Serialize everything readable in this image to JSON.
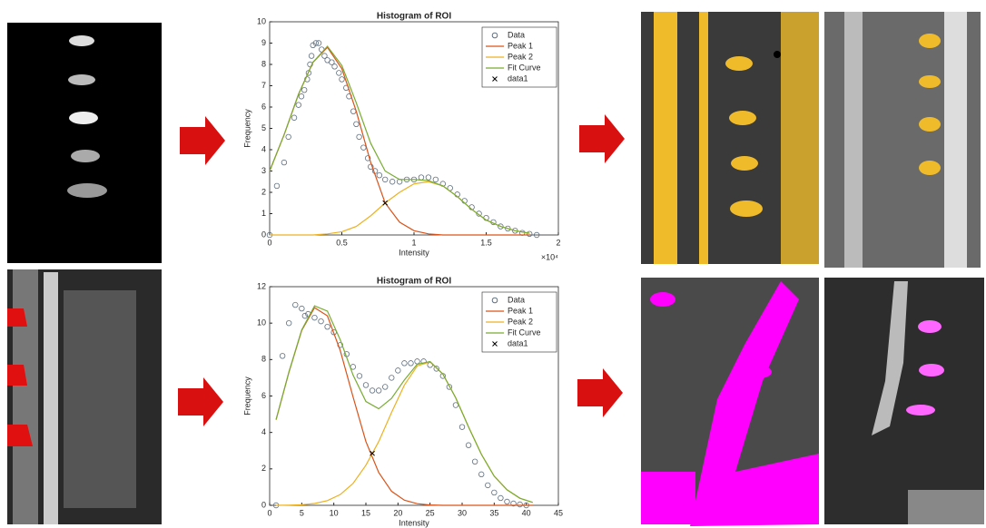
{
  "chart_data": [
    {
      "type": "line",
      "title": "Histogram of ROI",
      "xlabel": "Intensity",
      "ylabel": "Frequency",
      "x_exponent_label": "×10⁴",
      "xlim": [
        0,
        2
      ],
      "xticks": [
        0,
        0.5,
        1,
        1.5,
        2
      ],
      "ylim": [
        0,
        10
      ],
      "yticks": [
        0,
        1,
        2,
        3,
        4,
        5,
        6,
        7,
        8,
        9,
        10
      ],
      "legend": "upper right",
      "series": [
        {
          "name": "Data",
          "mode": "markers",
          "marker": "o",
          "color": "#5f6f7f",
          "x": [
            0,
            0.05,
            0.1,
            0.13,
            0.17,
            0.2,
            0.22,
            0.24,
            0.26,
            0.27,
            0.28,
            0.29,
            0.3,
            0.32,
            0.34,
            0.36,
            0.38,
            0.4,
            0.43,
            0.45,
            0.48,
            0.5,
            0.53,
            0.55,
            0.58,
            0.6,
            0.62,
            0.65,
            0.68,
            0.7,
            0.73,
            0.76,
            0.8,
            0.85,
            0.9,
            0.95,
            1.0,
            1.05,
            1.1,
            1.15,
            1.2,
            1.25,
            1.3,
            1.35,
            1.4,
            1.45,
            1.5,
            1.55,
            1.6,
            1.65,
            1.7,
            1.75,
            1.8,
            1.85
          ],
          "values": [
            0,
            2.3,
            3.4,
            4.6,
            5.5,
            6.1,
            6.5,
            6.8,
            7.3,
            7.6,
            8.0,
            8.4,
            8.9,
            9.0,
            9.0,
            8.7,
            8.4,
            8.2,
            8.1,
            7.9,
            7.6,
            7.3,
            6.9,
            6.5,
            5.8,
            5.2,
            4.6,
            4.1,
            3.6,
            3.2,
            3.0,
            2.8,
            2.6,
            2.5,
            2.5,
            2.6,
            2.6,
            2.7,
            2.7,
            2.6,
            2.4,
            2.2,
            1.9,
            1.6,
            1.3,
            1.0,
            0.8,
            0.6,
            0.4,
            0.3,
            0.2,
            0.1,
            0.05,
            0
          ]
        },
        {
          "name": "Peak 1",
          "mode": "line",
          "color": "#d95319",
          "x": [
            0,
            0.1,
            0.2,
            0.3,
            0.4,
            0.5,
            0.6,
            0.7,
            0.8,
            0.9,
            1.0,
            1.1,
            1.2,
            1.3,
            1.4,
            1.5,
            1.6,
            1.7,
            1.8
          ],
          "values": [
            3.0,
            4.7,
            6.6,
            8.1,
            8.8,
            7.8,
            5.8,
            3.4,
            1.5,
            0.6,
            0.2,
            0.05,
            0,
            0,
            0,
            0,
            0,
            0,
            0
          ]
        },
        {
          "name": "Peak 2",
          "mode": "line",
          "color": "#edb120",
          "x": [
            0,
            0.1,
            0.2,
            0.3,
            0.4,
            0.5,
            0.6,
            0.7,
            0.8,
            0.9,
            1.0,
            1.1,
            1.2,
            1.3,
            1.4,
            1.5,
            1.6,
            1.7,
            1.8
          ],
          "values": [
            0,
            0,
            0,
            0,
            0.05,
            0.15,
            0.4,
            0.9,
            1.5,
            2.0,
            2.4,
            2.5,
            2.3,
            1.8,
            1.2,
            0.7,
            0.4,
            0.2,
            0.08
          ]
        },
        {
          "name": "Fit Curve",
          "mode": "line",
          "color": "#77ac30",
          "x": [
            0,
            0.1,
            0.2,
            0.3,
            0.4,
            0.5,
            0.6,
            0.7,
            0.8,
            0.9,
            1.0,
            1.1,
            1.2,
            1.3,
            1.4,
            1.5,
            1.6,
            1.7,
            1.8
          ],
          "values": [
            3.0,
            4.7,
            6.6,
            8.1,
            8.85,
            7.95,
            6.2,
            4.3,
            3.0,
            2.6,
            2.6,
            2.55,
            2.3,
            1.8,
            1.2,
            0.7,
            0.4,
            0.2,
            0.08
          ]
        },
        {
          "name": "data1",
          "mode": "markers",
          "marker": "x",
          "color": "#000000",
          "x": [
            0.8
          ],
          "values": [
            1.5
          ]
        }
      ]
    },
    {
      "type": "line",
      "title": "Histogram of ROI",
      "xlabel": "Intensity",
      "ylabel": "Frequency",
      "xlim": [
        0,
        45
      ],
      "xticks": [
        0,
        5,
        10,
        15,
        20,
        25,
        30,
        35,
        40,
        45
      ],
      "ylim": [
        0,
        12
      ],
      "yticks": [
        0,
        2,
        4,
        6,
        8,
        10,
        12
      ],
      "legend": "upper right",
      "series": [
        {
          "name": "Data",
          "mode": "markers",
          "marker": "o",
          "color": "#5f6f7f",
          "x": [
            1,
            2,
            3,
            4,
            5,
            5.5,
            6,
            7,
            8,
            9,
            10,
            11,
            12,
            13,
            14,
            15,
            16,
            17,
            18,
            19,
            20,
            21,
            22,
            23,
            24,
            25,
            26,
            27,
            28,
            29,
            30,
            31,
            32,
            33,
            34,
            35,
            36,
            37,
            38,
            39,
            40
          ],
          "values": [
            0,
            8.2,
            10,
            11,
            10.8,
            10.4,
            10.5,
            10.3,
            10.1,
            9.8,
            9.5,
            8.8,
            8.3,
            7.6,
            7.1,
            6.6,
            6.3,
            6.3,
            6.5,
            7.0,
            7.4,
            7.8,
            7.8,
            7.9,
            7.9,
            7.7,
            7.5,
            7.1,
            6.5,
            5.5,
            4.3,
            3.3,
            2.4,
            1.7,
            1.1,
            0.7,
            0.4,
            0.2,
            0.1,
            0.05,
            0
          ]
        },
        {
          "name": "Peak 1",
          "mode": "line",
          "color": "#d95319",
          "x": [
            1,
            3,
            5,
            7,
            9,
            11,
            13,
            15,
            17,
            19,
            21,
            23,
            25,
            27,
            29,
            31,
            33,
            35,
            37,
            39,
            41
          ],
          "values": [
            4.7,
            7.3,
            9.6,
            10.85,
            10.4,
            8.5,
            5.95,
            3.5,
            1.8,
            0.77,
            0.28,
            0.09,
            0.02,
            0,
            0,
            0,
            0,
            0,
            0,
            0,
            0
          ]
        },
        {
          "name": "Peak 2",
          "mode": "line",
          "color": "#edb120",
          "x": [
            1,
            3,
            5,
            7,
            9,
            11,
            13,
            15,
            17,
            19,
            21,
            23,
            25,
            27,
            29,
            31,
            33,
            35,
            37,
            39,
            41
          ],
          "values": [
            0,
            0.01,
            0.03,
            0.1,
            0.26,
            0.59,
            1.2,
            2.2,
            3.5,
            5.1,
            6.6,
            7.65,
            7.87,
            7.2,
            5.9,
            4.3,
            2.8,
            1.6,
            0.85,
            0.39,
            0.16
          ]
        },
        {
          "name": "Fit Curve",
          "mode": "line",
          "color": "#77ac30",
          "x": [
            1,
            3,
            5,
            7,
            9,
            11,
            13,
            15,
            17,
            19,
            21,
            23,
            25,
            27,
            29,
            31,
            33,
            35,
            37,
            39,
            41
          ],
          "values": [
            4.7,
            7.31,
            9.63,
            10.95,
            10.66,
            9.09,
            7.15,
            5.7,
            5.3,
            5.87,
            6.88,
            7.74,
            7.89,
            7.2,
            5.9,
            4.3,
            2.8,
            1.6,
            0.85,
            0.39,
            0.16
          ]
        },
        {
          "name": "data1",
          "mode": "markers",
          "marker": "x",
          "color": "#000000",
          "x": [
            16
          ],
          "values": [
            2.85
          ]
        }
      ]
    }
  ]
}
